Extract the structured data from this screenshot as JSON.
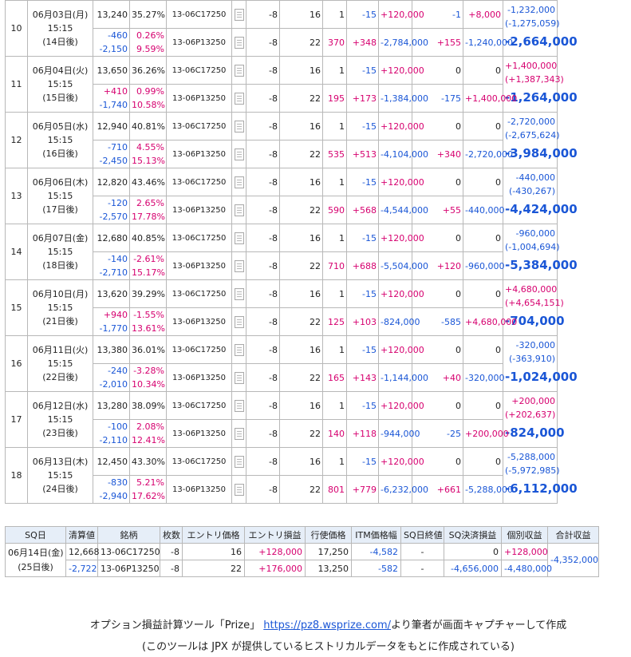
{
  "rows": [
    {
      "idx": "10",
      "date": "06月03日(月)",
      "time": "15:15",
      "days": "(14日後)",
      "price": "13,240",
      "iv": "35.27%",
      "chg": "-460",
      "chg_pct": "0.26%",
      "diff": "-2,150",
      "diff_pct": "9.59%",
      "leg1": {
        "code": "13-06C17250",
        "qty": "-8",
        "entry": "16",
        "val": "1",
        "cur_pnl": "-15",
        "entry_pnl": "+120,000",
        "sq_diff": "-1",
        "pnl": "+8,000"
      },
      "leg2": {
        "code": "13-06P13250",
        "qty": "-8",
        "entry": "22",
        "val": "370",
        "cur_pnl": "+348",
        "entry_pnl": "-2,784,000",
        "sq_diff": "+155",
        "pnl": "-1,240,000"
      },
      "total_a": "-1,232,000",
      "total_b": "(-1,275,059)",
      "total": "-2,664,000"
    },
    {
      "idx": "11",
      "date": "06月04日(火)",
      "time": "15:15",
      "days": "(15日後)",
      "price": "13,650",
      "iv": "36.26%",
      "chg": "+410",
      "chg_pct": "0.99%",
      "diff": "-1,740",
      "diff_pct": "10.58%",
      "leg1": {
        "code": "13-06C17250",
        "qty": "-8",
        "entry": "16",
        "val": "1",
        "cur_pnl": "-15",
        "entry_pnl": "+120,000",
        "sq_diff": "0",
        "pnl": "0"
      },
      "leg2": {
        "code": "13-06P13250",
        "qty": "-8",
        "entry": "22",
        "val": "195",
        "cur_pnl": "+173",
        "entry_pnl": "-1,384,000",
        "sq_diff": "-175",
        "pnl": "+1,400,000"
      },
      "total_a": "+1,400,000",
      "total_b": "(+1,387,343)",
      "total": "-1,264,000"
    },
    {
      "idx": "12",
      "date": "06月05日(水)",
      "time": "15:15",
      "days": "(16日後)",
      "price": "12,940",
      "iv": "40.81%",
      "chg": "-710",
      "chg_pct": "4.55%",
      "diff": "-2,450",
      "diff_pct": "15.13%",
      "leg1": {
        "code": "13-06C17250",
        "qty": "-8",
        "entry": "16",
        "val": "1",
        "cur_pnl": "-15",
        "entry_pnl": "+120,000",
        "sq_diff": "0",
        "pnl": "0"
      },
      "leg2": {
        "code": "13-06P13250",
        "qty": "-8",
        "entry": "22",
        "val": "535",
        "cur_pnl": "+513",
        "entry_pnl": "-4,104,000",
        "sq_diff": "+340",
        "pnl": "-2,720,000"
      },
      "total_a": "-2,720,000",
      "total_b": "(-2,675,624)",
      "total": "-3,984,000"
    },
    {
      "idx": "13",
      "date": "06月06日(木)",
      "time": "15:15",
      "days": "(17日後)",
      "price": "12,820",
      "iv": "43.46%",
      "chg": "-120",
      "chg_pct": "2.65%",
      "diff": "-2,570",
      "diff_pct": "17.78%",
      "leg1": {
        "code": "13-06C17250",
        "qty": "-8",
        "entry": "16",
        "val": "1",
        "cur_pnl": "-15",
        "entry_pnl": "+120,000",
        "sq_diff": "0",
        "pnl": "0"
      },
      "leg2": {
        "code": "13-06P13250",
        "qty": "-8",
        "entry": "22",
        "val": "590",
        "cur_pnl": "+568",
        "entry_pnl": "-4,544,000",
        "sq_diff": "+55",
        "pnl": "-440,000"
      },
      "total_a": "-440,000",
      "total_b": "(-430,267)",
      "total": "-4,424,000"
    },
    {
      "idx": "14",
      "date": "06月07日(金)",
      "time": "15:15",
      "days": "(18日後)",
      "price": "12,680",
      "iv": "40.85%",
      "chg": "-140",
      "chg_pct": "-2.61%",
      "diff": "-2,710",
      "diff_pct": "15.17%",
      "leg1": {
        "code": "13-06C17250",
        "qty": "-8",
        "entry": "16",
        "val": "1",
        "cur_pnl": "-15",
        "entry_pnl": "+120,000",
        "sq_diff": "0",
        "pnl": "0"
      },
      "leg2": {
        "code": "13-06P13250",
        "qty": "-8",
        "entry": "22",
        "val": "710",
        "cur_pnl": "+688",
        "entry_pnl": "-5,504,000",
        "sq_diff": "+120",
        "pnl": "-960,000"
      },
      "total_a": "-960,000",
      "total_b": "(-1,004,694)",
      "total": "-5,384,000"
    },
    {
      "idx": "15",
      "date": "06月10日(月)",
      "time": "15:15",
      "days": "(21日後)",
      "price": "13,620",
      "iv": "39.29%",
      "chg": "+940",
      "chg_pct": "-1.55%",
      "diff": "-1,770",
      "diff_pct": "13.61%",
      "leg1": {
        "code": "13-06C17250",
        "qty": "-8",
        "entry": "16",
        "val": "1",
        "cur_pnl": "-15",
        "entry_pnl": "+120,000",
        "sq_diff": "0",
        "pnl": "0"
      },
      "leg2": {
        "code": "13-06P13250",
        "qty": "-8",
        "entry": "22",
        "val": "125",
        "cur_pnl": "+103",
        "entry_pnl": "-824,000",
        "sq_diff": "-585",
        "pnl": "+4,680,000"
      },
      "total_a": "+4,680,000",
      "total_b": "(+4,654,151)",
      "total": "-704,000"
    },
    {
      "idx": "16",
      "date": "06月11日(火)",
      "time": "15:15",
      "days": "(22日後)",
      "price": "13,380",
      "iv": "36.01%",
      "chg": "-240",
      "chg_pct": "-3.28%",
      "diff": "-2,010",
      "diff_pct": "10.34%",
      "leg1": {
        "code": "13-06C17250",
        "qty": "-8",
        "entry": "16",
        "val": "1",
        "cur_pnl": "-15",
        "entry_pnl": "+120,000",
        "sq_diff": "0",
        "pnl": "0"
      },
      "leg2": {
        "code": "13-06P13250",
        "qty": "-8",
        "entry": "22",
        "val": "165",
        "cur_pnl": "+143",
        "entry_pnl": "-1,144,000",
        "sq_diff": "+40",
        "pnl": "-320,000"
      },
      "total_a": "-320,000",
      "total_b": "(-363,910)",
      "total": "-1,024,000"
    },
    {
      "idx": "17",
      "date": "06月12日(水)",
      "time": "15:15",
      "days": "(23日後)",
      "price": "13,280",
      "iv": "38.09%",
      "chg": "-100",
      "chg_pct": "2.08%",
      "diff": "-2,110",
      "diff_pct": "12.41%",
      "leg1": {
        "code": "13-06C17250",
        "qty": "-8",
        "entry": "16",
        "val": "1",
        "cur_pnl": "-15",
        "entry_pnl": "+120,000",
        "sq_diff": "0",
        "pnl": "0"
      },
      "leg2": {
        "code": "13-06P13250",
        "qty": "-8",
        "entry": "22",
        "val": "140",
        "cur_pnl": "+118",
        "entry_pnl": "-944,000",
        "sq_diff": "-25",
        "pnl": "+200,000"
      },
      "total_a": "+200,000",
      "total_b": "(+202,637)",
      "total": "-824,000"
    },
    {
      "idx": "18",
      "date": "06月13日(木)",
      "time": "15:15",
      "days": "(24日後)",
      "price": "12,450",
      "iv": "43.30%",
      "chg": "-830",
      "chg_pct": "5.21%",
      "diff": "-2,940",
      "diff_pct": "17.62%",
      "leg1": {
        "code": "13-06C17250",
        "qty": "-8",
        "entry": "16",
        "val": "1",
        "cur_pnl": "-15",
        "entry_pnl": "+120,000",
        "sq_diff": "0",
        "pnl": "0"
      },
      "leg2": {
        "code": "13-06P13250",
        "qty": "-8",
        "entry": "22",
        "val": "801",
        "cur_pnl": "+779",
        "entry_pnl": "-6,232,000",
        "sq_diff": "+661",
        "pnl": "-5,288,000"
      },
      "total_a": "-5,288,000",
      "total_b": "(-5,972,985)",
      "total": "-6,112,000"
    }
  ],
  "sq": {
    "headers": [
      "SQ日",
      "清算値",
      "銘柄",
      "枚数",
      "エントリ価格",
      "エントリ損益",
      "行使価格",
      "ITM価格幅",
      "SQ日終値",
      "SQ決済損益",
      "個別収益",
      "合計収益"
    ],
    "date": "06月14日(金)",
    "days": "(25日後)",
    "price": "12,668",
    "diff": "-2,722",
    "total": "-4,352,000",
    "legs": [
      {
        "code": "13-06C17250",
        "qty": "-8",
        "entry": "16",
        "entry_pnl": "+128,000",
        "strike": "17,250",
        "itm": "-4,582",
        "close": "-",
        "sq_pnl": "0",
        "ind": "+128,000"
      },
      {
        "code": "13-06P13250",
        "qty": "-8",
        "entry": "22",
        "entry_pnl": "+176,000",
        "strike": "13,250",
        "itm": "-582",
        "close": "-",
        "sq_pnl": "-4,656,000",
        "ind": "-4,480,000"
      }
    ]
  },
  "caption": {
    "line1_pre": "オプション損益計算ツール「Prize」",
    "link": "https://pz8.wsprize.com/",
    "line1_post": "より筆者が画面キャプチャーして作成",
    "line2": "(このツールは JPX が提供しているヒストリカルデータをもとに作成されている)"
  },
  "colors": {
    "positive": "#d6006f",
    "negative": "#1a56d6",
    "header_bg": "#e6eef8"
  }
}
